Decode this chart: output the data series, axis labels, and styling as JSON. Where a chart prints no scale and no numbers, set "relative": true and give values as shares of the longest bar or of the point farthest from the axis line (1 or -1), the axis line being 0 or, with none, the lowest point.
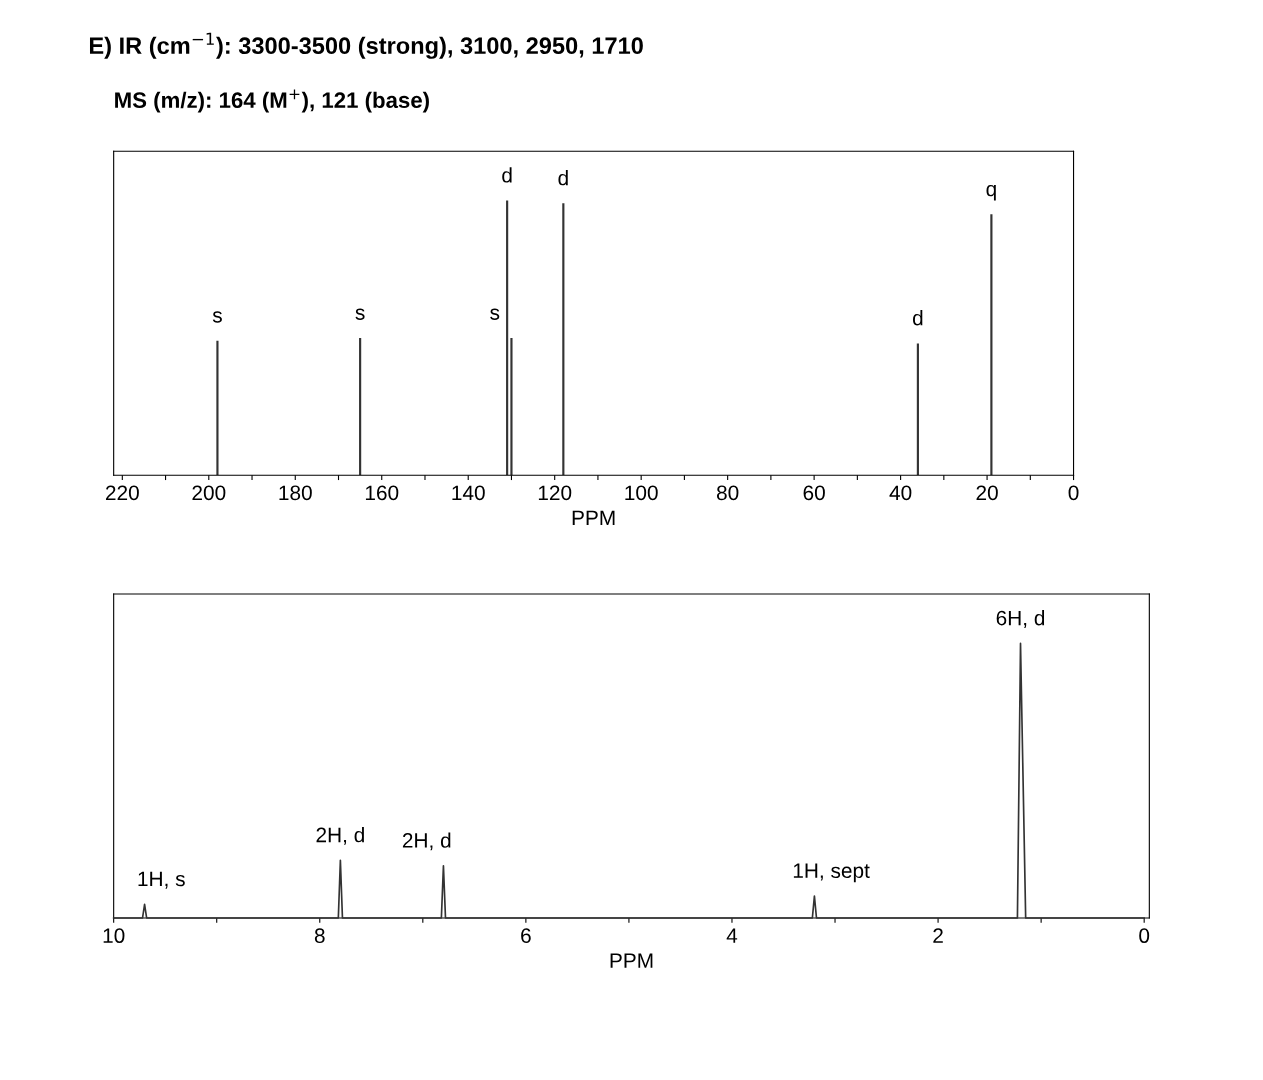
{
  "chart_data": [
    {
      "type": "bar",
      "title": "E) IR (cm$^{−1}$): 3300-3500 (strong), 3100, 2950, 1710",
      "subtitle": "MS (m/z): 164 (M$^{+}$), 121 (base)",
      "xlabel": "PPM",
      "relative": true,
      "color": "#333333",
      "x": [
        198,
        165,
        131,
        130,
        118,
        36,
        19
      ],
      "values": [
        0.49,
        0.5,
        1.0,
        0.5,
        0.99,
        0.48,
        0.95
      ],
      "xlim": [
        222,
        0
      ],
      "xticks": [
        220,
        {
          "value": 210,
          "label": null
        },
        200,
        {
          "value": 190,
          "label": null
        },
        180,
        {
          "value": 170,
          "label": null
        },
        160,
        {
          "value": 150,
          "label": null
        },
        140,
        {
          "value": 130,
          "label": null
        },
        120,
        {
          "value": 110,
          "label": null
        },
        100,
        {
          "value": 90,
          "label": null
        },
        80,
        {
          "value": 70,
          "label": null
        },
        60,
        {
          "value": 50,
          "label": null
        },
        40,
        {
          "value": 30,
          "label": null
        },
        20,
        {
          "value": 10,
          "label": null
        },
        0
      ],
      "annotations": [
        {
          "text": "s",
          "x": 198,
          "y": 0.49
        },
        {
          "text": "s",
          "x": 165,
          "y": 0.5
        },
        {
          "text": "d",
          "x": 131,
          "y": 1.0
        },
        {
          "text": "s",
          "x": 130,
          "y": 0.5
        },
        {
          "text": "d",
          "x": 118,
          "y": 0.99
        },
        {
          "text": "d",
          "x": 36,
          "y": 0.48
        },
        {
          "text": "q",
          "x": 19,
          "y": 0.95
        }
      ],
      "grid": false
    },
    {
      "type": "line",
      "xlabel": "PPM",
      "relative": true,
      "color": "#333333",
      "x": [
        10,
        9.72,
        9.7,
        9.68,
        7.82,
        7.8,
        7.78,
        6.82,
        6.8,
        6.78,
        3.22,
        3.2,
        3.18,
        1.23,
        1.2,
        1.15,
        0
      ],
      "values": [
        0,
        0,
        0.05,
        0,
        0,
        0.21,
        0,
        0,
        0.19,
        0,
        0,
        0.08,
        0,
        0,
        1,
        0,
        0
      ],
      "xlim": [
        10,
        -0.05
      ],
      "xticks": [
        10,
        {
          "value": 9,
          "label": null
        },
        8,
        {
          "value": 7,
          "label": null
        },
        6,
        {
          "value": 5,
          "label": null
        },
        4,
        {
          "value": 3,
          "label": null
        },
        2,
        {
          "value": 1,
          "label": null
        },
        0
      ],
      "annotations": [
        {
          "text": "1H, s",
          "x": 9.7,
          "y": 0.05
        },
        {
          "text": "2H, d",
          "x": 7.8,
          "y": 0.21
        },
        {
          "text": "2H, d",
          "x": 6.8,
          "y": 0.19
        },
        {
          "text": "1H, sept",
          "x": 3.2,
          "y": 0.08
        },
        {
          "text": "6H, d",
          "x": 1.2,
          "y": 1
        }
      ],
      "grid": false
    }
  ]
}
